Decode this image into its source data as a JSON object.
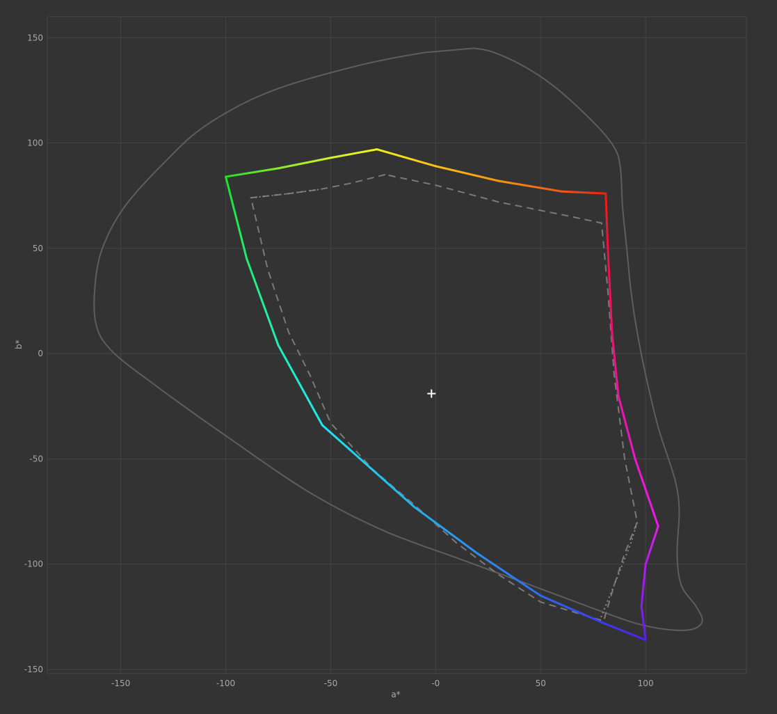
{
  "chart_data": {
    "type": "line",
    "title": "",
    "xlabel": "a*",
    "ylabel": "b*",
    "xlim": [
      -185,
      148
    ],
    "ylim": [
      -152,
      160
    ],
    "grid": true,
    "x_ticks": [
      -150,
      -100,
      -50,
      0,
      50,
      100
    ],
    "x_tick_labels": [
      "-150",
      "-100",
      "-50",
      "-0",
      "50",
      "100"
    ],
    "y_ticks": [
      150,
      100,
      50,
      0,
      -50,
      -100,
      -150
    ],
    "y_tick_labels": [
      "150",
      "100",
      "50",
      "0",
      "-50",
      "-100",
      "-150"
    ],
    "white_point": {
      "a": -2,
      "b": -19
    },
    "series": [
      {
        "name": "reference-outer-gamut",
        "style": "solid-gray",
        "color": "#5e5e5e",
        "closed": true,
        "points": [
          [
            18,
            145
          ],
          [
            35,
            140
          ],
          [
            55,
            128
          ],
          [
            75,
            110
          ],
          [
            85,
            98
          ],
          [
            88,
            88
          ],
          [
            89,
            70
          ],
          [
            91,
            50
          ],
          [
            93,
            30
          ],
          [
            96,
            10
          ],
          [
            100,
            -10
          ],
          [
            106,
            -35
          ],
          [
            114,
            -60
          ],
          [
            116,
            -75
          ],
          [
            115,
            -95
          ],
          [
            117,
            -110
          ],
          [
            124,
            -120
          ],
          [
            127,
            -127
          ],
          [
            122,
            -131
          ],
          [
            110,
            -131
          ],
          [
            95,
            -128
          ],
          [
            75,
            -121
          ],
          [
            40,
            -108
          ],
          [
            10,
            -97
          ],
          [
            -25,
            -84
          ],
          [
            -60,
            -66
          ],
          [
            -100,
            -39
          ],
          [
            -135,
            -14
          ],
          [
            -155,
            2
          ],
          [
            -162,
            15
          ],
          [
            -162,
            35
          ],
          [
            -158,
            52
          ],
          [
            -148,
            70
          ],
          [
            -130,
            90
          ],
          [
            -110,
            108
          ],
          [
            -80,
            124
          ],
          [
            -40,
            136
          ],
          [
            -5,
            143
          ]
        ]
      },
      {
        "name": "dashed-gamut",
        "style": "dashed-gray",
        "color": "#7a7a7a",
        "points": [
          [
            -24,
            85
          ],
          [
            -40,
            81
          ],
          [
            -55,
            78
          ],
          [
            -70,
            76
          ],
          [
            -88,
            74
          ],
          [
            -80,
            40
          ],
          [
            -70,
            10
          ],
          [
            -60,
            -10
          ],
          [
            -50,
            -33
          ],
          [
            -30,
            -55
          ],
          [
            -10,
            -72
          ],
          [
            10,
            -90
          ],
          [
            30,
            -105
          ],
          [
            50,
            -118
          ],
          [
            80,
            -127
          ],
          [
            85,
            -110
          ],
          [
            90,
            -95
          ],
          [
            96,
            -80
          ],
          [
            90,
            -50
          ],
          [
            85,
            -10
          ],
          [
            82,
            30
          ],
          [
            79,
            62
          ],
          [
            60,
            66
          ],
          [
            30,
            72
          ],
          [
            0,
            80
          ],
          [
            -24,
            85
          ]
        ]
      },
      {
        "name": "gamut-outline",
        "style": "hue-gradient",
        "points": [
          [
            -100,
            84,
            "#1fe02a"
          ],
          [
            -75,
            88,
            "#8ae82a"
          ],
          [
            -50,
            93,
            "#d4ef2a"
          ],
          [
            -28,
            97,
            "#f2f21e"
          ],
          [
            0,
            89,
            "#f7c01a"
          ],
          [
            30,
            82,
            "#f29515"
          ],
          [
            60,
            77,
            "#f05a10"
          ],
          [
            81,
            76,
            "#ef2010"
          ],
          [
            82,
            50,
            "#f01040"
          ],
          [
            84,
            10,
            "#f01070"
          ],
          [
            87,
            -20,
            "#f013a3"
          ],
          [
            95,
            -50,
            "#f015d0"
          ],
          [
            106,
            -82,
            "#e81cf0"
          ],
          [
            100,
            -100,
            "#b41cf0"
          ],
          [
            98,
            -120,
            "#8a1cf0"
          ],
          [
            100,
            -136,
            "#5a1cf0"
          ],
          [
            80,
            -128,
            "#3a3cf0"
          ],
          [
            50,
            -115,
            "#2e6af0"
          ],
          [
            20,
            -95,
            "#2a8ff0"
          ],
          [
            -10,
            -73,
            "#23b0f0"
          ],
          [
            -54,
            -34,
            "#1de8f0"
          ],
          [
            -75,
            4,
            "#1ff0b8"
          ],
          [
            -90,
            45,
            "#1fef70"
          ],
          [
            -100,
            84,
            "#1fe02a"
          ]
        ]
      }
    ],
    "dotted_segments": [
      {
        "name": "dotted-top-left",
        "points": [
          [
            -88,
            74
          ],
          [
            -70,
            76
          ],
          [
            -55,
            78
          ]
        ]
      },
      {
        "name": "dotted-bottom-right",
        "points": [
          [
            78,
            -127
          ],
          [
            85,
            -110
          ],
          [
            93,
            -90
          ],
          [
            96,
            -80
          ]
        ]
      }
    ]
  }
}
